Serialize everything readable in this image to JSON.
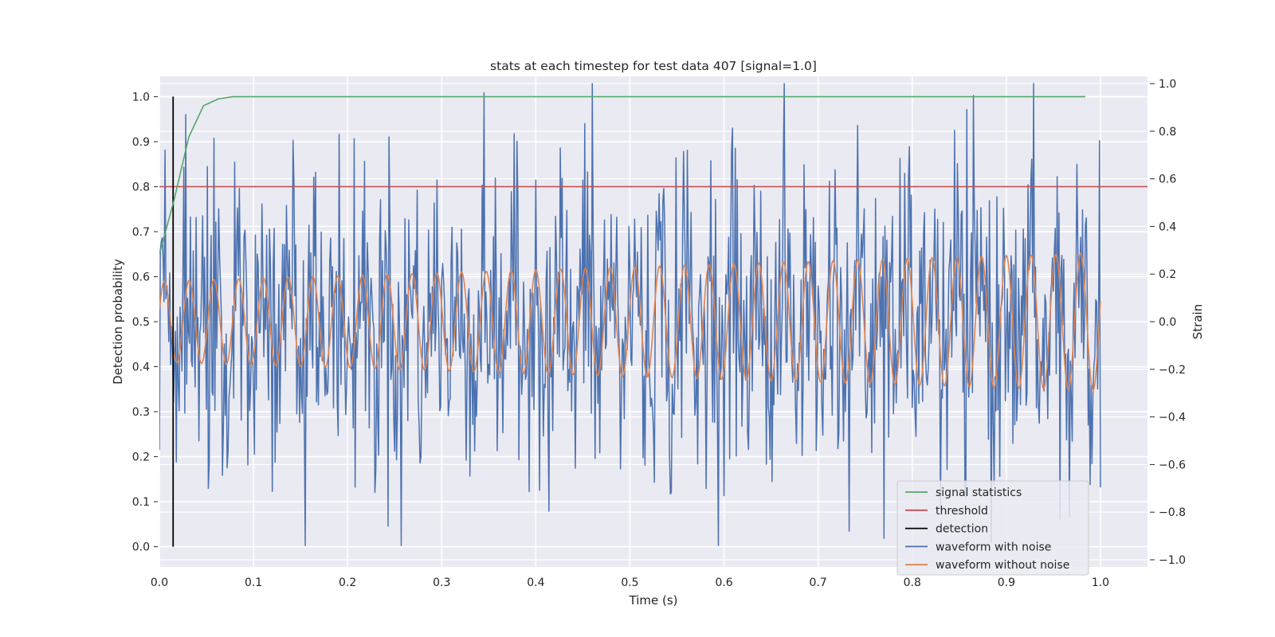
{
  "chart_data": {
    "type": "line",
    "title": "stats at each timestep for test data 407 [signal=1.0]",
    "xlabel": "Time (s)",
    "ylabel_left": "Detection probability",
    "ylabel_right": "Strain",
    "xlim": [
      0.0,
      1.05
    ],
    "ylim_left": [
      -0.045,
      1.045
    ],
    "ylim_right": [
      -1.03,
      1.03
    ],
    "x_ticks": [
      "0.0",
      "0.1",
      "0.2",
      "0.3",
      "0.4",
      "0.5",
      "0.6",
      "0.7",
      "0.8",
      "0.9",
      "1.0"
    ],
    "y_ticks_left": [
      "0.0",
      "0.1",
      "0.2",
      "0.3",
      "0.4",
      "0.5",
      "0.6",
      "0.7",
      "0.8",
      "0.9",
      "1.0"
    ],
    "y_ticks_right": [
      "−1.0",
      "−0.8",
      "−0.6",
      "−0.4",
      "−0.2",
      "0.0",
      "0.2",
      "0.4",
      "0.6",
      "0.8",
      "1.0"
    ],
    "grid": true,
    "legend_position": "lower-right",
    "series": [
      {
        "name": "signal statistics",
        "axis": "left",
        "color": "#55a868",
        "x": [
          0.0,
          0.0156,
          0.0312,
          0.0469,
          0.0625,
          0.0781,
          0.1,
          0.2,
          0.3,
          0.4,
          0.5,
          0.6,
          0.7,
          0.8,
          0.9,
          0.984
        ],
        "y": [
          0.65,
          0.77,
          0.91,
          0.98,
          0.995,
          1.0,
          1.0,
          1.0,
          1.0,
          1.0,
          1.0,
          1.0,
          1.0,
          1.0,
          1.0,
          1.0
        ]
      },
      {
        "name": "threshold",
        "axis": "left",
        "color": "#c44e52",
        "x": [
          0.0,
          1.05
        ],
        "y": [
          0.8,
          0.8
        ]
      },
      {
        "name": "detection",
        "axis": "left",
        "color": "#000000",
        "x": [
          0.0146,
          0.0146
        ],
        "y": [
          0.0,
          1.0
        ]
      },
      {
        "name": "waveform with noise",
        "axis": "right",
        "color": "#4c72b0",
        "samples": 1000,
        "x_range": [
          0.0,
          1.0
        ],
        "y_range": [
          -0.94,
          1.0
        ],
        "peaks": [
          {
            "x": 0.46,
            "y": 1.0
          },
          {
            "x": 0.865,
            "y": 0.95
          },
          {
            "x": 0.058,
            "y": 0.77
          },
          {
            "x": 0.08,
            "y": 0.67
          },
          {
            "x": 0.999,
            "y": 0.76
          }
        ],
        "troughs": [
          {
            "x": 0.155,
            "y": -0.94
          },
          {
            "x": 0.257,
            "y": -0.94
          },
          {
            "x": 0.77,
            "y": -0.91
          },
          {
            "x": 0.957,
            "y": -0.83
          },
          {
            "x": 0.733,
            "y": -0.88
          }
        ]
      },
      {
        "name": "waveform without noise",
        "axis": "right",
        "color": "#dd8452",
        "samples": 1000,
        "x_range": [
          0.0,
          1.0
        ],
        "frequency_hz": 38,
        "amplitude_start": 0.17,
        "amplitude_end": 0.29
      }
    ]
  }
}
